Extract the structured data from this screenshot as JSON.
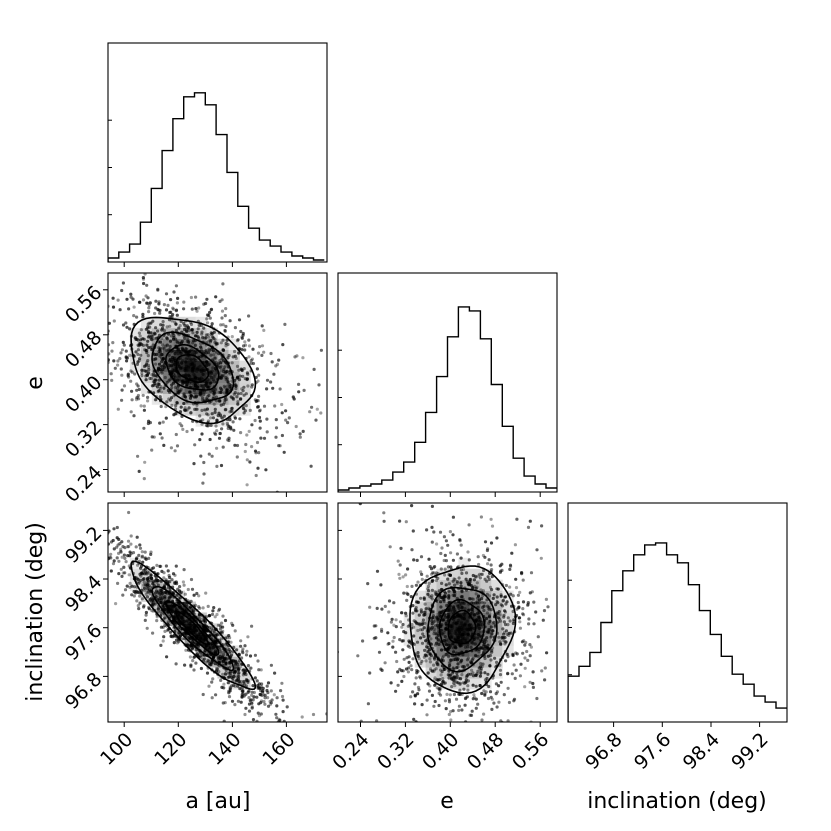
{
  "chart_data": {
    "type": "corner",
    "variables": [
      "a [au]",
      "e",
      "inclination (deg)"
    ],
    "ranges": {
      "a": [
        94,
        175
      ],
      "e": [
        0.2,
        0.59
      ],
      "inclination": [
        96.05,
        99.65
      ]
    },
    "ticks": {
      "a": [
        "100",
        "120",
        "140",
        "160"
      ],
      "e": [
        "0.24",
        "0.32",
        "0.40",
        "0.48",
        "0.56"
      ],
      "inclination": [
        "96.8",
        "97.6",
        "98.4",
        "99.2"
      ]
    },
    "histograms": {
      "a": {
        "edges": [
          94,
          98,
          102,
          106,
          110,
          114,
          118,
          122,
          126,
          130,
          134,
          138,
          142,
          146,
          150,
          154,
          158,
          162,
          166,
          170,
          174
        ],
        "values": [
          0.02,
          0.05,
          0.09,
          0.2,
          0.37,
          0.56,
          0.72,
          0.83,
          0.85,
          0.79,
          0.64,
          0.45,
          0.28,
          0.17,
          0.11,
          0.08,
          0.05,
          0.03,
          0.02,
          0.01
        ]
      },
      "e": {
        "edges": [
          0.2,
          0.2195,
          0.239,
          0.2585,
          0.278,
          0.2975,
          0.317,
          0.3365,
          0.356,
          0.3755,
          0.395,
          0.4145,
          0.434,
          0.4535,
          0.473,
          0.4925,
          0.512,
          0.5315,
          0.551,
          0.5705,
          0.59
        ],
        "values": [
          0.01,
          0.02,
          0.03,
          0.04,
          0.06,
          0.1,
          0.15,
          0.25,
          0.4,
          0.58,
          0.78,
          0.93,
          0.91,
          0.77,
          0.54,
          0.33,
          0.17,
          0.08,
          0.04,
          0.02
        ]
      },
      "inclination": {
        "edges": [
          96.05,
          96.23,
          96.41,
          96.59,
          96.77,
          96.95,
          97.13,
          97.31,
          97.49,
          97.67,
          97.85,
          98.03,
          98.21,
          98.39,
          98.57,
          98.75,
          98.93,
          99.11,
          99.29,
          99.47,
          99.65
        ],
        "values": [
          0.23,
          0.28,
          0.35,
          0.5,
          0.66,
          0.76,
          0.84,
          0.89,
          0.9,
          0.84,
          0.8,
          0.69,
          0.56,
          0.44,
          0.33,
          0.24,
          0.19,
          0.13,
          0.1,
          0.07
        ]
      }
    },
    "joint": [
      {
        "x": "a",
        "y": "e",
        "mean": [
          125,
          0.42
        ],
        "sd": [
          11,
          0.045
        ],
        "rho": -0.35
      },
      {
        "x": "a",
        "y": "inclination",
        "mean": [
          125,
          97.6
        ],
        "sd": [
          11,
          0.5
        ],
        "rho": -0.93
      },
      {
        "x": "e",
        "y": "inclination",
        "mean": [
          0.42,
          97.6
        ],
        "sd": [
          0.045,
          0.5
        ],
        "rho": 0.05
      }
    ],
    "contour_levels_sigma": [
      0.5,
      1.0,
      1.5,
      2.0
    ]
  }
}
